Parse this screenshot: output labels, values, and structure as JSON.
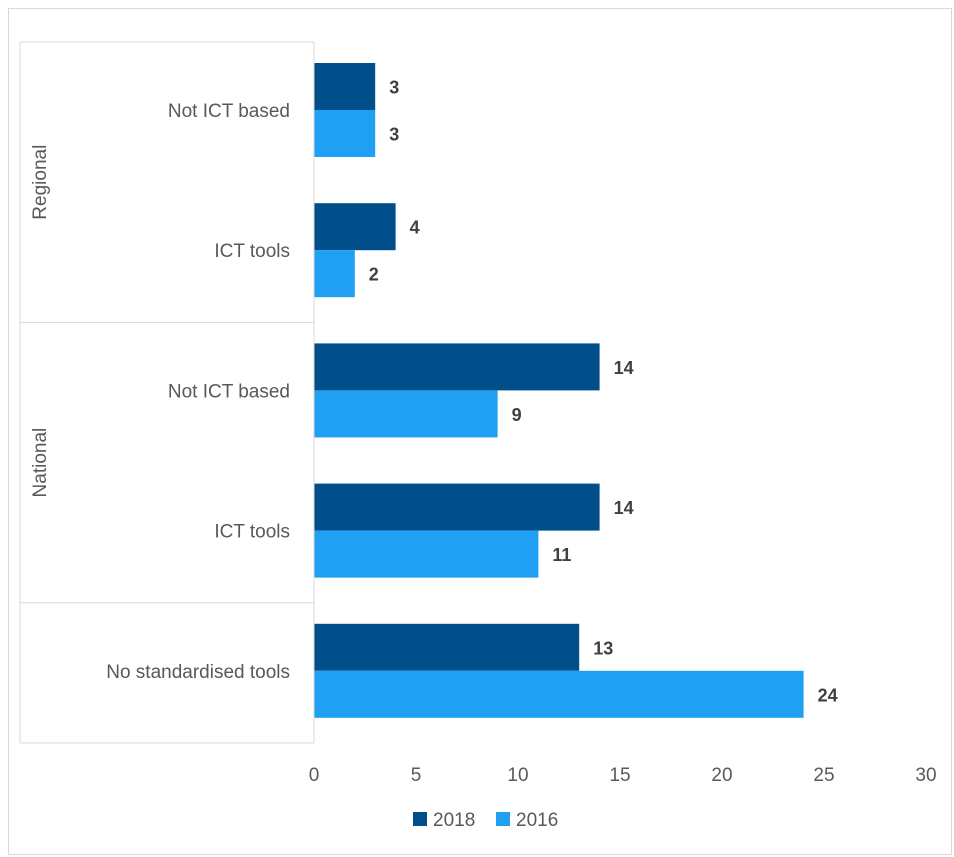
{
  "chart_data": {
    "type": "bar",
    "orientation": "horizontal",
    "title": "",
    "xlabel": "",
    "ylabel": "",
    "xlim": [
      0,
      30
    ],
    "xticks": [
      0,
      5,
      10,
      15,
      20,
      25,
      30
    ],
    "grid": false,
    "legend_position": "bottom",
    "groups": [
      {
        "name": "Regional",
        "categories": [
          "Not ICT based",
          "ICT tools"
        ]
      },
      {
        "name": "National",
        "categories": [
          "Not ICT based",
          "ICT tools"
        ]
      },
      {
        "name": "",
        "categories": [
          "No standardised tools"
        ]
      }
    ],
    "categories": [
      "Not ICT based",
      "ICT tools",
      "Not ICT based",
      "ICT tools",
      "No standardised tools"
    ],
    "series": [
      {
        "name": "2018",
        "color": "#004f8b",
        "values": [
          3,
          4,
          14,
          14,
          13
        ]
      },
      {
        "name": "2016",
        "color": "#1fa0f2",
        "values": [
          3,
          2,
          9,
          11,
          24
        ]
      }
    ]
  }
}
